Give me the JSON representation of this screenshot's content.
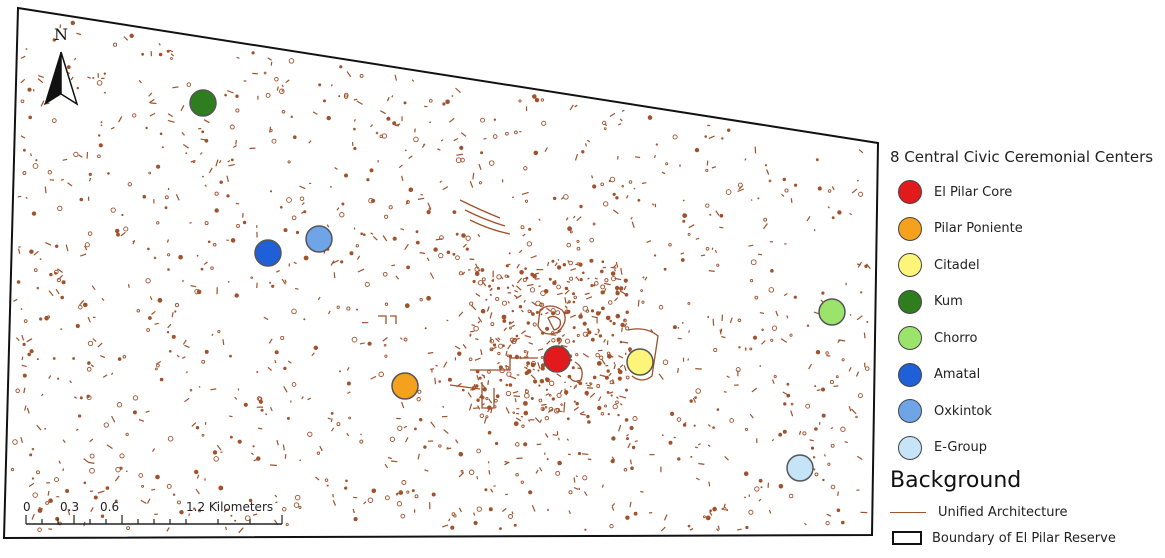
{
  "map": {
    "north_label": "N",
    "feature_color": "#a0522d",
    "boundary_color": "#111111"
  },
  "scale_bar": {
    "ticks": [
      "0",
      "0.3",
      "0.6",
      "1.2 Kilometers"
    ]
  },
  "centers": [
    {
      "name": "El Pilar Core",
      "color": "#e31a1c"
    },
    {
      "name": "Pilar Poniente",
      "color": "#f4a11d"
    },
    {
      "name": "Citadel",
      "color": "#fdf57a"
    },
    {
      "name": "Kum",
      "color": "#2e7d1e"
    },
    {
      "name": "Chorro",
      "color": "#9be36b"
    },
    {
      "name": "Amatal",
      "color": "#1f5fd8"
    },
    {
      "name": "Oxkintok",
      "color": "#6fa4e6"
    },
    {
      "name": "E-Group",
      "color": "#c6e4f7"
    }
  ],
  "legend": {
    "title": "8 Central Civic Ceremonial Centers",
    "background_title": "Background",
    "unified_architecture": "Unified Architecture",
    "boundary": "Boundary of El Pilar Reserve"
  }
}
